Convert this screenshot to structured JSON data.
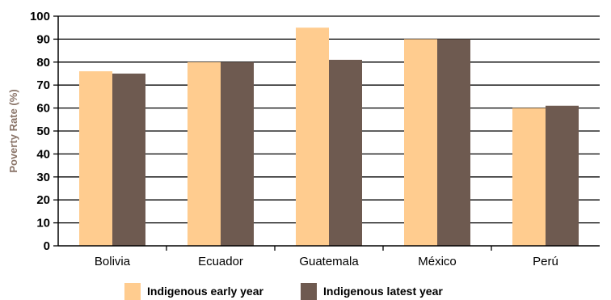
{
  "chart_data": {
    "type": "bar",
    "title": "",
    "xlabel": "",
    "ylabel": "Poverty Rate (%)",
    "ylim": [
      0,
      100
    ],
    "yticks": [
      0,
      10,
      20,
      30,
      40,
      50,
      60,
      70,
      80,
      90,
      100
    ],
    "grid": "horizontal",
    "legend_position": "bottom",
    "categories": [
      "Bolivia",
      "Ecuador",
      "Guatemala",
      "México",
      "Perú"
    ],
    "series": [
      {
        "name": "Indigenous early year",
        "color": "#ffcc8f",
        "values": [
          76,
          80,
          95,
          90,
          60
        ]
      },
      {
        "name": "Indigenous latest year",
        "color": "#6e5a50",
        "values": [
          75,
          80,
          81,
          90,
          61
        ]
      }
    ]
  }
}
